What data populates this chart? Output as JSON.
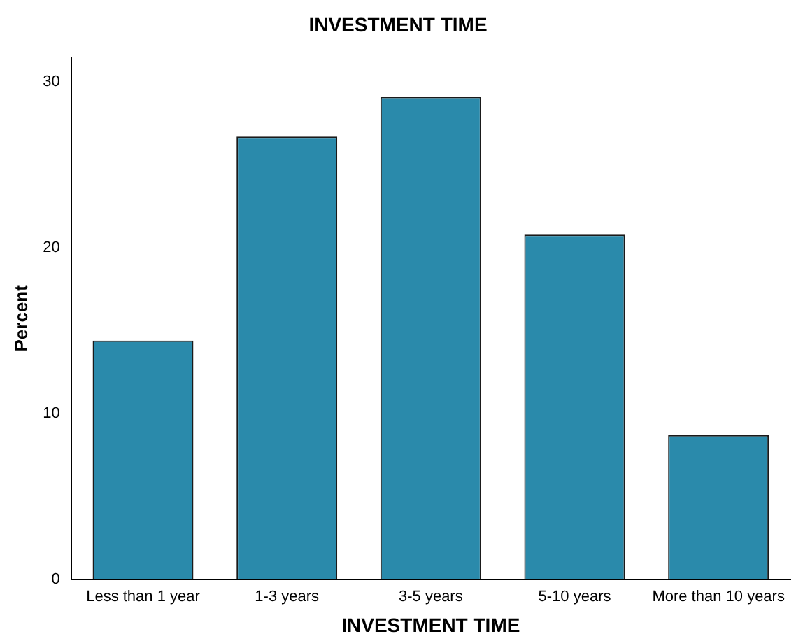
{
  "chart_data": {
    "type": "bar",
    "title": "INVESTMENT TIME",
    "xlabel": "INVESTMENT TIME",
    "ylabel": "Percent",
    "categories": [
      "Less than 1 year",
      "1-3 years",
      "3-5 years",
      "5-10 years",
      "More than 10 years"
    ],
    "values": [
      14.4,
      26.7,
      29.1,
      20.8,
      8.7
    ],
    "color": "#2a8aab",
    "ylim": [
      0,
      31.5
    ],
    "yticks": [
      0,
      10,
      20,
      30
    ],
    "grid": false,
    "legend": false
  }
}
